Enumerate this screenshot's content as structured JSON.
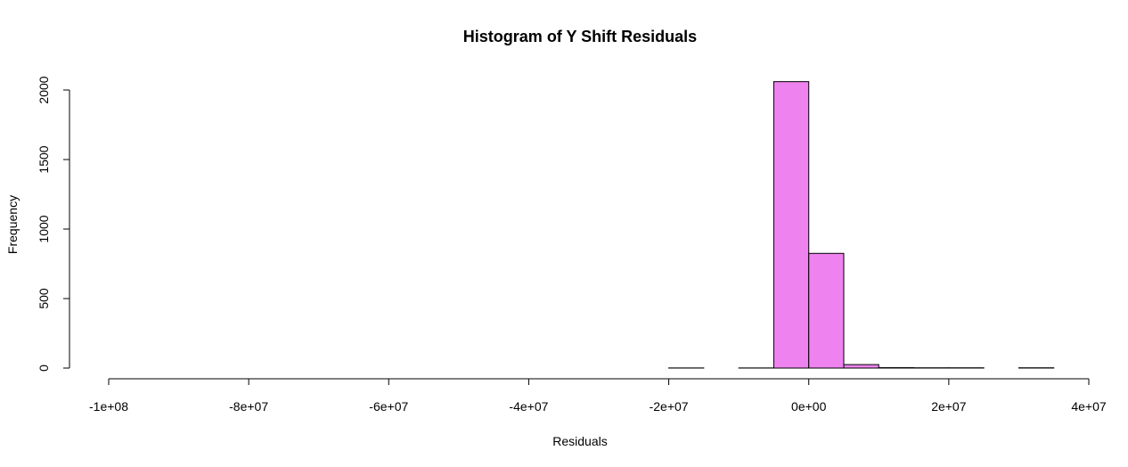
{
  "chart_data": {
    "type": "bar",
    "title": "Histogram of Y Shift Residuals",
    "xlabel": "Residuals",
    "ylabel": "Frequency",
    "xlim": [
      -100000000,
      40000000
    ],
    "ylim": [
      0,
      2000
    ],
    "x_ticks": [
      -100000000,
      -80000000,
      -60000000,
      -40000000,
      -20000000,
      0,
      20000000,
      40000000
    ],
    "x_tick_labels": [
      "-1e+08",
      "-8e+07",
      "-6e+07",
      "-4e+07",
      "-2e+07",
      "0e+00",
      "2e+07",
      "4e+07"
    ],
    "y_ticks": [
      0,
      500,
      1000,
      1500,
      2000
    ],
    "y_tick_labels": [
      "0",
      "500",
      "1000",
      "1500",
      "2000"
    ],
    "bin_width": 5000000,
    "bin_starts": [
      -100000000,
      -95000000,
      -90000000,
      -85000000,
      -80000000,
      -75000000,
      -70000000,
      -65000000,
      -60000000,
      -55000000,
      -50000000,
      -45000000,
      -40000000,
      -35000000,
      -30000000,
      -25000000,
      -20000000,
      -15000000,
      -10000000,
      -5000000,
      0,
      5000000,
      10000000,
      15000000,
      20000000,
      25000000,
      30000000
    ],
    "values": [
      0,
      0,
      0,
      0,
      0,
      0,
      0,
      0,
      0,
      0,
      0,
      0,
      0,
      0,
      0,
      0,
      1,
      0,
      1,
      2060,
      825,
      25,
      3,
      2,
      2,
      0,
      2
    ],
    "bar_color": "#EE82EE",
    "grid": false
  }
}
